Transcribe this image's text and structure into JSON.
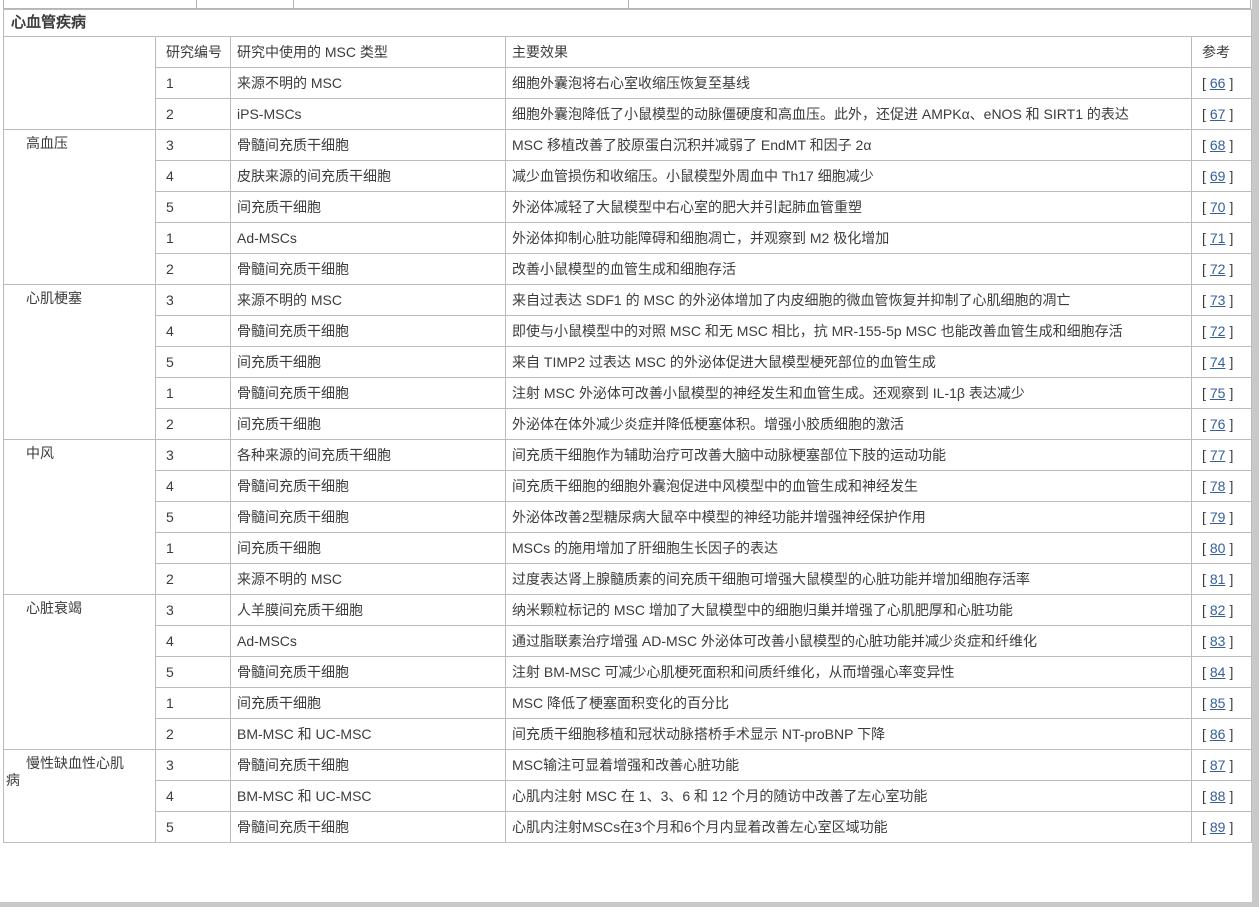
{
  "table": {
    "section_title": "心血管疾病",
    "columns": {
      "study_no": "研究编号",
      "msc_type": "研究中使用的 MSC 类型",
      "effect": "主要效果",
      "ref": "参考"
    },
    "ref_format": {
      "open": "[",
      "close": "]"
    },
    "groups": [
      {
        "disease": "",
        "rows": [
          {
            "no": "1",
            "type": "来源不明的 MSC",
            "effect": "细胞外囊泡将右心室收缩压恢复至基线",
            "ref": "66"
          },
          {
            "no": "2",
            "type": "iPS-MSCs",
            "effect": "细胞外囊泡降低了小鼠模型的动脉僵硬度和高血压。此外，还促进 AMPKα、eNOS 和 SIRT1 的表达",
            "ref": "67"
          }
        ]
      },
      {
        "disease": "高血压",
        "rows": [
          {
            "no": "3",
            "type": "骨髓间充质干细胞",
            "effect": "MSC 移植改善了胶原蛋白沉积并减弱了 EndMT 和因子 2α",
            "ref": "68"
          },
          {
            "no": "4",
            "type": "皮肤来源的间充质干细胞",
            "effect": "减少血管损伤和收缩压。小鼠模型外周血中 Th17 细胞减少",
            "ref": "69"
          },
          {
            "no": "5",
            "type": "间充质干细胞",
            "effect": "外泌体减轻了大鼠模型中右心室的肥大并引起肺血管重塑",
            "ref": "70"
          },
          {
            "no": "1",
            "type": "Ad-MSCs",
            "effect": "外泌体抑制心脏功能障碍和细胞凋亡，并观察到 M2 极化增加",
            "ref": "71"
          },
          {
            "no": "2",
            "type": "骨髓间充质干细胞",
            "effect": "改善小鼠模型的血管生成和细胞存活",
            "ref": "72"
          }
        ]
      },
      {
        "disease": "心肌梗塞",
        "rows": [
          {
            "no": "3",
            "type": "来源不明的 MSC",
            "effect": "来自过表达 SDF1 的 MSC 的外泌体增加了内皮细胞的微血管恢复并抑制了心肌细胞的凋亡",
            "ref": "73"
          },
          {
            "no": "4",
            "type": "骨髓间充质干细胞",
            "effect": "即使与小鼠模型中的对照 MSC 和无 MSC 相比，抗 MR-155-5p MSC 也能改善血管生成和细胞存活",
            "ref": "72"
          },
          {
            "no": "5",
            "type": "间充质干细胞",
            "effect": "来自 TIMP2 过表达 MSC 的外泌体促进大鼠模型梗死部位的血管生成",
            "ref": "74"
          },
          {
            "no": "1",
            "type": "骨髓间充质干细胞",
            "effect": "注射 MSC 外泌体可改善小鼠模型的神经发生和血管生成。还观察到 IL-1β 表达减少",
            "ref": "75"
          },
          {
            "no": "2",
            "type": "间充质干细胞",
            "effect": "外泌体在体外减少炎症并降低梗塞体积。增强小胶质细胞的激活",
            "ref": "76"
          }
        ]
      },
      {
        "disease": "中风",
        "rows": [
          {
            "no": "3",
            "type": "各种来源的间充质干细胞",
            "effect": "间充质干细胞作为辅助治疗可改善大脑中动脉梗塞部位下肢的运动功能",
            "ref": "77"
          },
          {
            "no": "4",
            "type": "骨髓间充质干细胞",
            "effect": "间充质干细胞的细胞外囊泡促进中风模型中的血管生成和神经发生",
            "ref": "78"
          },
          {
            "no": "5",
            "type": "骨髓间充质干细胞",
            "effect": "外泌体改善2型糖尿病大鼠卒中模型的神经功能并增强神经保护作用",
            "ref": "79"
          },
          {
            "no": "1",
            "type": "间充质干细胞",
            "effect": "MSCs 的施用增加了肝细胞生长因子的表达",
            "ref": "80"
          },
          {
            "no": "2",
            "type": "来源不明的 MSC",
            "effect": "过度表达肾上腺髓质素的间充质干细胞可增强大鼠模型的心脏功能并增加细胞存活率",
            "ref": "81"
          }
        ]
      },
      {
        "disease": "心脏衰竭",
        "rows": [
          {
            "no": "3",
            "type": "人羊膜间充质干细胞",
            "effect": "纳米颗粒标记的 MSC 增加了大鼠模型中的细胞归巢并增强了心肌肥厚和心脏功能",
            "ref": "82"
          },
          {
            "no": "4",
            "type": "Ad-MSCs",
            "effect": "通过脂联素治疗增强 AD-MSC 外泌体可改善小鼠模型的心脏功能并减少炎症和纤维化",
            "ref": "83"
          },
          {
            "no": "5",
            "type": "骨髓间充质干细胞",
            "effect": "注射 BM-MSC 可减少心肌梗死面积和间质纤维化，从而增强心率变异性",
            "ref": "84"
          },
          {
            "no": "1",
            "type": "间充质干细胞",
            "effect": "MSC 降低了梗塞面积变化的百分比",
            "ref": "85"
          },
          {
            "no": "2",
            "type": "BM-MSC 和 UC-MSC",
            "effect": "间充质干细胞移植和冠状动脉搭桥手术显示 NT-proBNP 下降",
            "ref": "86"
          }
        ]
      },
      {
        "disease": "慢性缺血性心肌病",
        "rows": [
          {
            "no": "3",
            "type": "骨髓间充质干细胞",
            "effect": "MSC输注可显着增强和改善心脏功能",
            "ref": "87"
          },
          {
            "no": "4",
            "type": "BM-MSC 和 UC-MSC",
            "effect": "心肌内注射 MSC 在 1、3、6 和 12 个月的随访中改善了左心室功能",
            "ref": "88"
          },
          {
            "no": "5",
            "type": "骨髓间充质干细胞",
            "effect": "心肌内注射MSCs在3个月和6个月内显着改善左心室区域功能",
            "ref": "89"
          }
        ]
      }
    ]
  },
  "colors": {
    "link_blue": "#36609b",
    "body_text": "#3c3c3c",
    "table_border": "#bcbcbc",
    "scrollbar_gray": "#c9c9c9"
  }
}
